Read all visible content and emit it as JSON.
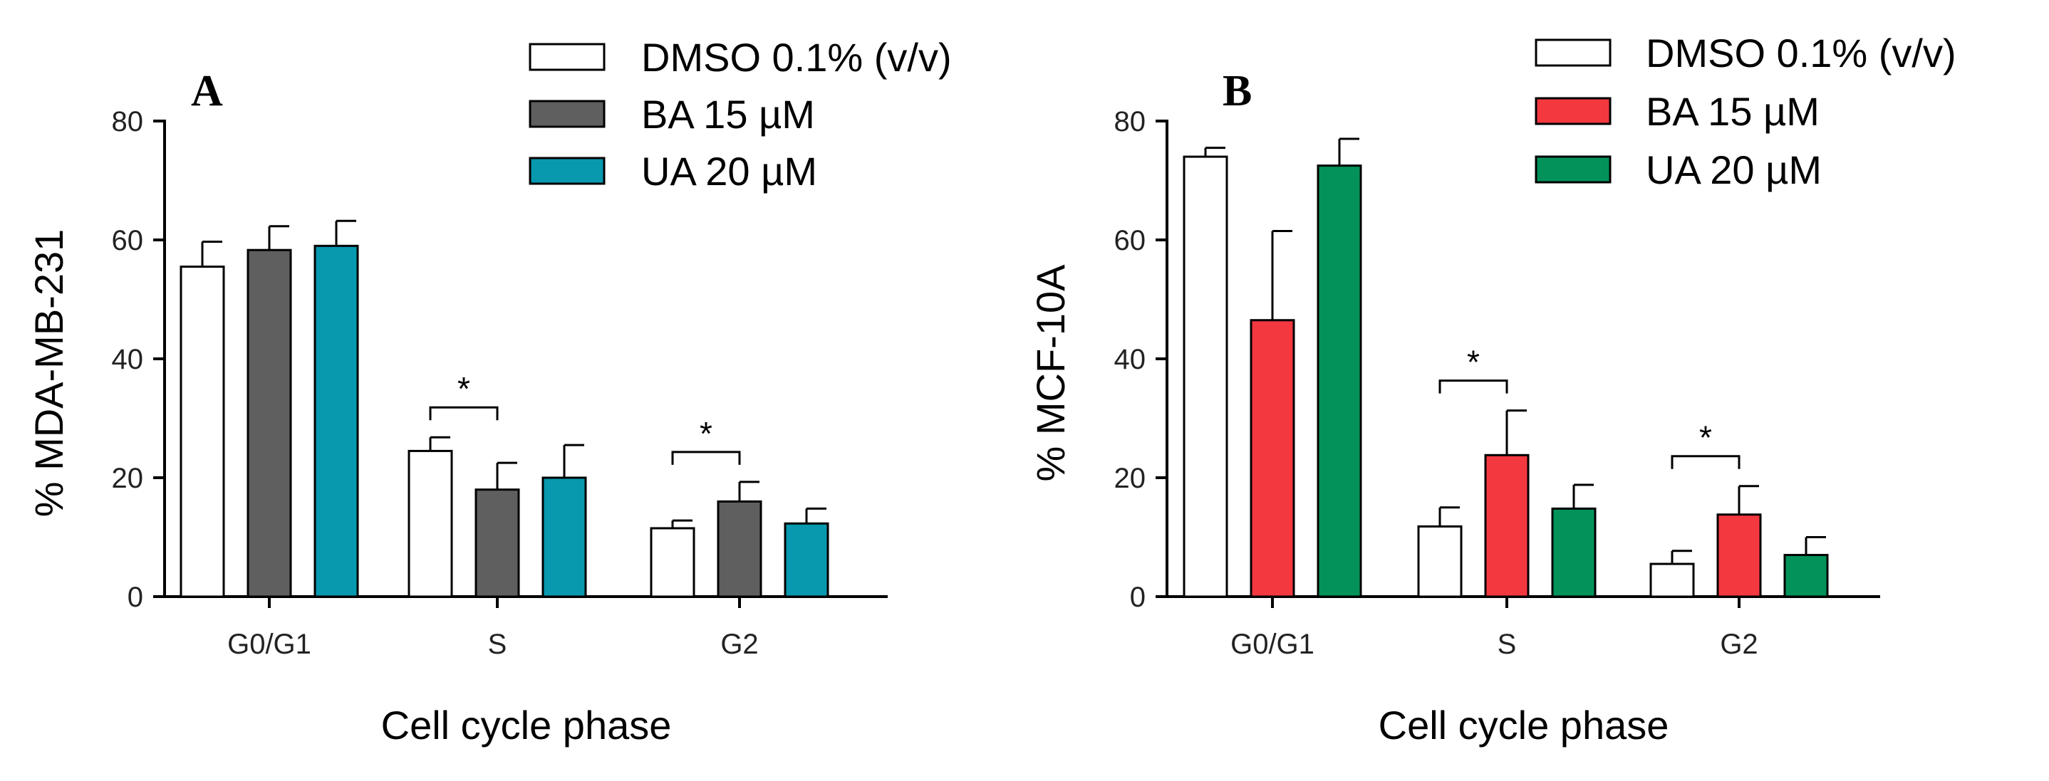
{
  "chart_data": [
    {
      "type": "bar",
      "panel_label": "A",
      "ylabel": "% MDA-MB-231",
      "xlabel": "Cell cycle phase",
      "ylim": [
        0,
        80
      ],
      "yticks": [
        "0",
        "20",
        "40",
        "60",
        "80"
      ],
      "categories": [
        "G0/G1",
        "S",
        "G2"
      ],
      "series": [
        {
          "name": "DMSO 0.1% (v/v)",
          "color": "#ffffff",
          "values": [
            55.5,
            24.5,
            11.5
          ],
          "errors": [
            4.2,
            2.3,
            1.3
          ]
        },
        {
          "name": "BA 15  µM",
          "color": "#5f5f5f",
          "values": [
            58.3,
            18.0,
            16.0
          ],
          "errors": [
            4.0,
            4.5,
            3.3
          ]
        },
        {
          "name": "UA 20  µM",
          "color": "#0899ae",
          "values": [
            59.0,
            20.0,
            12.3
          ],
          "errors": [
            4.2,
            5.5,
            2.5
          ]
        }
      ],
      "significance": [
        {
          "category": "S",
          "label": "*"
        },
        {
          "category": "G2",
          "label": "*"
        }
      ]
    },
    {
      "type": "bar",
      "panel_label": "B",
      "ylabel": "% MCF-10A",
      "xlabel": "Cell cycle phase",
      "ylim": [
        0,
        80
      ],
      "yticks": [
        "0",
        "20",
        "40",
        "60",
        "80"
      ],
      "categories": [
        "G0/G1",
        "S",
        "G2"
      ],
      "series": [
        {
          "name": "DMSO 0.1% (v/v)",
          "color": "#ffffff",
          "values": [
            74.0,
            11.8,
            5.5
          ],
          "errors": [
            1.5,
            3.2,
            2.2
          ]
        },
        {
          "name": "BA 15  µM",
          "color": "#f4383f",
          "values": [
            46.5,
            23.8,
            13.8
          ],
          "errors": [
            15.0,
            7.5,
            4.8
          ]
        },
        {
          "name": "UA 20  µM",
          "color": "#03935a",
          "values": [
            72.5,
            14.8,
            7.0
          ],
          "errors": [
            4.5,
            4.0,
            3.0
          ]
        }
      ],
      "significance": [
        {
          "category": "S",
          "label": "*"
        },
        {
          "category": "G2",
          "label": "*"
        }
      ]
    }
  ]
}
